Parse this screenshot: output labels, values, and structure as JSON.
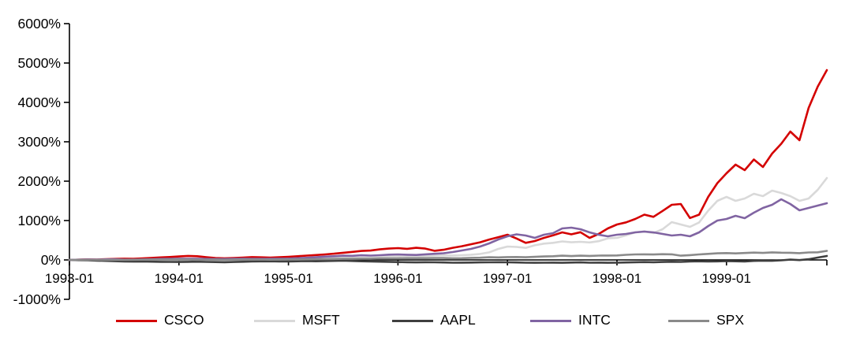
{
  "chart_data": {
    "type": "line",
    "title": "",
    "xlabel": "",
    "ylabel": "",
    "grid": false,
    "legend_position": "bottom",
    "background_color": "#ffffff",
    "axis_color": "#000000",
    "ylim": [
      -1000,
      6000
    ],
    "y_tick_values": [
      6000,
      5000,
      4000,
      3000,
      2000,
      1000,
      0,
      -1000
    ],
    "y_tick_labels": [
      "6000%",
      "5000%",
      "4000%",
      "3000%",
      "2000%",
      "1000%",
      "0%",
      "-1000%"
    ],
    "x_unit": "month",
    "x_range": [
      "1993-01",
      "1999-12"
    ],
    "n_points": 84,
    "x_tick_indices": [
      0,
      12,
      24,
      36,
      48,
      60,
      72
    ],
    "x_tick_labels": [
      "1993-01",
      "1994-01",
      "1995-01",
      "1996-01",
      "1997-01",
      "1998-01",
      "1999-01"
    ],
    "value_unit": "percent cumulative return",
    "series": [
      {
        "name": "CSCO",
        "color": "#d40000",
        "values": [
          0,
          6,
          14,
          10,
          20,
          26,
          33,
          28,
          40,
          52,
          64,
          74,
          88,
          102,
          95,
          70,
          50,
          42,
          50,
          60,
          72,
          66,
          58,
          68,
          80,
          94,
          110,
          124,
          140,
          158,
          182,
          204,
          228,
          238,
          268,
          288,
          300,
          282,
          308,
          288,
          232,
          258,
          308,
          348,
          398,
          448,
          518,
          578,
          640,
          545,
          435,
          480,
          560,
          625,
          700,
          650,
          705,
          560,
          660,
          800,
          900,
          955,
          1040,
          1150,
          1095,
          1245,
          1400,
          1420,
          1065,
          1150,
          1600,
          1950,
          2200,
          2420,
          2280,
          2550,
          2360,
          2700,
          2950,
          3260,
          3040,
          3860,
          4400,
          4820
        ]
      },
      {
        "name": "MSFT",
        "color": "#d9d9d9",
        "values": [
          0,
          -4,
          4,
          -2,
          6,
          2,
          -6,
          -8,
          -2,
          2,
          6,
          -2,
          0,
          -2,
          4,
          8,
          12,
          8,
          10,
          14,
          18,
          22,
          26,
          24,
          28,
          32,
          36,
          42,
          48,
          52,
          56,
          52,
          58,
          62,
          70,
          88,
          100,
          96,
          92,
          104,
          112,
          118,
          112,
          120,
          132,
          152,
          192,
          280,
          340,
          330,
          306,
          372,
          414,
          434,
          470,
          448,
          460,
          444,
          476,
          548,
          560,
          624,
          700,
          724,
          680,
          780,
          960,
          900,
          840,
          952,
          1250,
          1500,
          1600,
          1500,
          1560,
          1680,
          1620,
          1760,
          1700,
          1620,
          1500,
          1560,
          1780,
          2080
        ]
      },
      {
        "name": "AAPL",
        "color": "#3f3f3f",
        "values": [
          0,
          -5,
          -10,
          -18,
          -24,
          -32,
          -38,
          -42,
          -40,
          -44,
          -48,
          -50,
          -52,
          -48,
          -44,
          -50,
          -54,
          -58,
          -52,
          -46,
          -40,
          -36,
          -34,
          -40,
          -38,
          -34,
          -30,
          -34,
          -28,
          -24,
          -20,
          -26,
          -34,
          -40,
          -44,
          -48,
          -54,
          -58,
          -62,
          -58,
          -60,
          -64,
          -70,
          -68,
          -66,
          -62,
          -60,
          -58,
          -60,
          -64,
          -70,
          -72,
          -70,
          -68,
          -72,
          -66,
          -62,
          -70,
          -68,
          -72,
          -70,
          -64,
          -58,
          -54,
          -58,
          -52,
          -46,
          -50,
          -40,
          -34,
          -40,
          -36,
          -30,
          -34,
          -38,
          -24,
          -18,
          -22,
          -10,
          8,
          -4,
          18,
          60,
          100
        ]
      },
      {
        "name": "INTC",
        "color": "#8064a2",
        "values": [
          0,
          6,
          12,
          8,
          14,
          16,
          10,
          8,
          14,
          20,
          26,
          30,
          32,
          28,
          30,
          26,
          25,
          24,
          27,
          31,
          29,
          27,
          29,
          31,
          35,
          44,
          54,
          68,
          84,
          95,
          108,
          104,
          118,
          110,
          120,
          134,
          140,
          132,
          126,
          142,
          156,
          170,
          200,
          240,
          280,
          340,
          420,
          520,
          600,
          650,
          620,
          560,
          640,
          680,
          800,
          820,
          780,
          700,
          640,
          600,
          640,
          660,
          700,
          720,
          700,
          660,
          620,
          640,
          600,
          700,
          860,
          1000,
          1040,
          1120,
          1060,
          1200,
          1320,
          1400,
          1540,
          1420,
          1260,
          1320,
          1380,
          1440
        ]
      },
      {
        "name": "SPX",
        "color": "#8a8a8a",
        "values": [
          0,
          1,
          3,
          1,
          3,
          3,
          2,
          5,
          6,
          8,
          7,
          8,
          11,
          8,
          4,
          5,
          6,
          3,
          6,
          10,
          8,
          10,
          6,
          7,
          10,
          13,
          16,
          19,
          23,
          25,
          29,
          29,
          33,
          32,
          38,
          40,
          43,
          44,
          45,
          46,
          49,
          49,
          42,
          45,
          52,
          56,
          67,
          64,
          73,
          74,
          67,
          77,
          87,
          94,
          109,
          98,
          108,
          101,
          110,
          113,
          115,
          130,
          140,
          142,
          138,
          146,
          143,
          108,
          122,
          140,
          154,
          167,
          174,
          166,
          176,
          186,
          179,
          192,
          184,
          181,
          173,
          190,
          195,
          230
        ]
      }
    ]
  }
}
